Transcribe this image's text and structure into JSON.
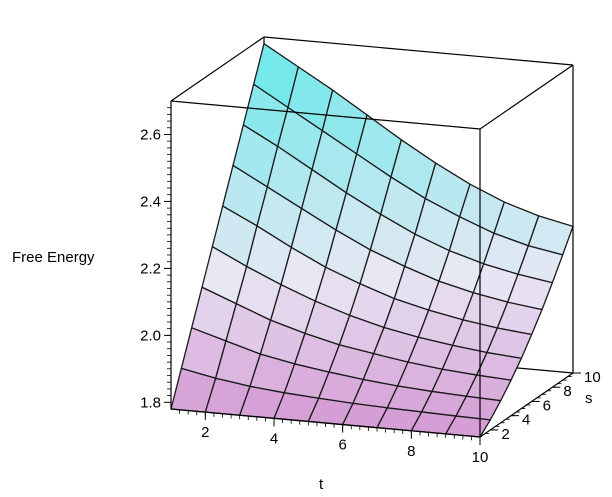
{
  "chart_data": {
    "type": "surface",
    "title": "",
    "xlabel": "t",
    "ylabel": "s",
    "zlabel": "Free Energy",
    "xlim": [
      1,
      10
    ],
    "ylim": [
      1,
      10
    ],
    "zlim": [
      1.78,
      2.7
    ],
    "x_ticks": [
      "2",
      "4",
      "6",
      "8",
      "10"
    ],
    "y_ticks": [
      "2",
      "4",
      "6",
      "8",
      "10"
    ],
    "z_ticks": [
      "1.8",
      "2.0",
      "2.2",
      "2.4",
      "2.6"
    ],
    "grid_t": [
      1,
      2,
      3,
      4,
      5,
      6,
      7,
      8,
      9,
      10
    ],
    "grid_s": [
      1,
      2,
      3,
      4,
      5,
      6,
      7,
      8,
      9,
      10
    ],
    "values": [
      [
        1.78,
        1.78,
        1.78,
        1.78,
        1.78,
        1.78,
        1.78,
        1.78,
        1.78,
        1.78
      ],
      [
        1.88,
        1.86,
        1.845,
        1.835,
        1.828,
        1.822,
        1.818,
        1.815,
        1.812,
        1.81
      ],
      [
        1.98,
        1.95,
        1.92,
        1.9,
        1.885,
        1.872,
        1.862,
        1.855,
        1.85,
        1.846
      ],
      [
        2.08,
        2.04,
        2.0,
        1.97,
        1.945,
        1.928,
        1.912,
        1.9,
        1.892,
        1.886
      ],
      [
        2.18,
        2.13,
        2.085,
        2.045,
        2.012,
        1.985,
        1.965,
        1.95,
        1.938,
        1.93
      ],
      [
        2.28,
        2.23,
        2.175,
        2.125,
        2.085,
        2.05,
        2.025,
        2.005,
        1.99,
        1.98
      ],
      [
        2.38,
        2.325,
        2.27,
        2.215,
        2.165,
        2.125,
        2.09,
        2.065,
        2.046,
        2.033
      ],
      [
        2.48,
        2.425,
        2.365,
        2.305,
        2.25,
        2.2,
        2.16,
        2.13,
        2.108,
        2.092
      ],
      [
        2.58,
        2.52,
        2.46,
        2.4,
        2.34,
        2.285,
        2.24,
        2.2,
        2.172,
        2.154
      ],
      [
        2.68,
        2.62,
        2.56,
        2.495,
        2.43,
        2.37,
        2.316,
        2.272,
        2.24,
        2.218
      ]
    ],
    "color_high": "#5de8e8",
    "color_mid": "#e8e8f4",
    "color_low": "#d49ad4",
    "grid": false,
    "legend": "none"
  }
}
